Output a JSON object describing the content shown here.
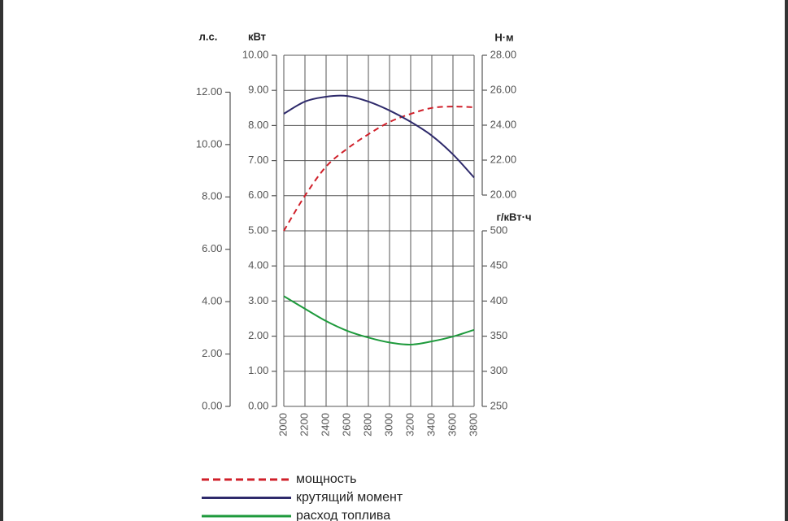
{
  "chart_data": {
    "type": "line",
    "xlim": [
      2000,
      3800
    ],
    "xticks": [
      2000,
      2200,
      2400,
      2600,
      2800,
      3000,
      3200,
      3400,
      3600,
      3800
    ],
    "grid": true,
    "y_label": "кВт",
    "ylim": [
      0,
      10
    ],
    "yticks": [
      {
        "value": 0,
        "label": "0.00"
      },
      {
        "value": 1,
        "label": "1.00"
      },
      {
        "value": 2,
        "label": "2.00"
      },
      {
        "value": 3,
        "label": "3.00"
      },
      {
        "value": 4,
        "label": "4.00"
      },
      {
        "value": 5,
        "label": "5.00"
      },
      {
        "value": 6,
        "label": "6.00"
      },
      {
        "value": 7,
        "label": "7.00"
      },
      {
        "value": 8,
        "label": "8.00"
      },
      {
        "value": 9,
        "label": "9.00"
      },
      {
        "value": 10,
        "label": "10.00"
      }
    ],
    "y2_label": "Н·м",
    "y2lim": [
      20,
      28
    ],
    "y2ticks": [
      {
        "value": 20,
        "label": "20.00"
      },
      {
        "value": 22,
        "label": "22.00"
      },
      {
        "value": 24,
        "label": "24.00"
      },
      {
        "value": 26,
        "label": "26.00"
      },
      {
        "value": 28,
        "label": "28.00"
      }
    ],
    "y3_label": "г/кВт·ч",
    "y3lim": [
      250,
      500
    ],
    "y3ticks": [
      250,
      300,
      350,
      400,
      450,
      500
    ],
    "y4_label": "л.с.",
    "y4lim": [
      0,
      13.41
    ],
    "y4ticks": [
      {
        "value": 0,
        "label": "0.00"
      },
      {
        "value": 2,
        "label": "2.00"
      },
      {
        "value": 4,
        "label": "4.00"
      },
      {
        "value": 6,
        "label": "6.00"
      },
      {
        "value": 8,
        "label": "8.00"
      },
      {
        "value": 10,
        "label": "10.00"
      },
      {
        "value": 12,
        "label": "12.00"
      }
    ],
    "x": [
      2000,
      2200,
      2400,
      2600,
      2800,
      3000,
      3200,
      3400,
      3600,
      3800
    ],
    "series": [
      {
        "name": "мощность",
        "color": "#d0202a",
        "dashed": true,
        "axis": "y",
        "values": [
          5.0,
          6.0,
          6.83,
          7.34,
          7.75,
          8.1,
          8.33,
          8.5,
          8.54,
          8.52
        ]
      },
      {
        "name": "крутящий момент",
        "color": "#2e2a6b",
        "dashed": false,
        "axis": "y2",
        "values": [
          24.65,
          25.35,
          25.63,
          25.67,
          25.35,
          24.84,
          24.19,
          23.4,
          22.33,
          21.0
        ]
      },
      {
        "name": "расход топлива",
        "color": "#1e9a3c",
        "dashed": false,
        "axis": "y3",
        "values": [
          407,
          389,
          371.5,
          357.6,
          348,
          341,
          338,
          342.6,
          349.5,
          359
        ]
      }
    ]
  }
}
